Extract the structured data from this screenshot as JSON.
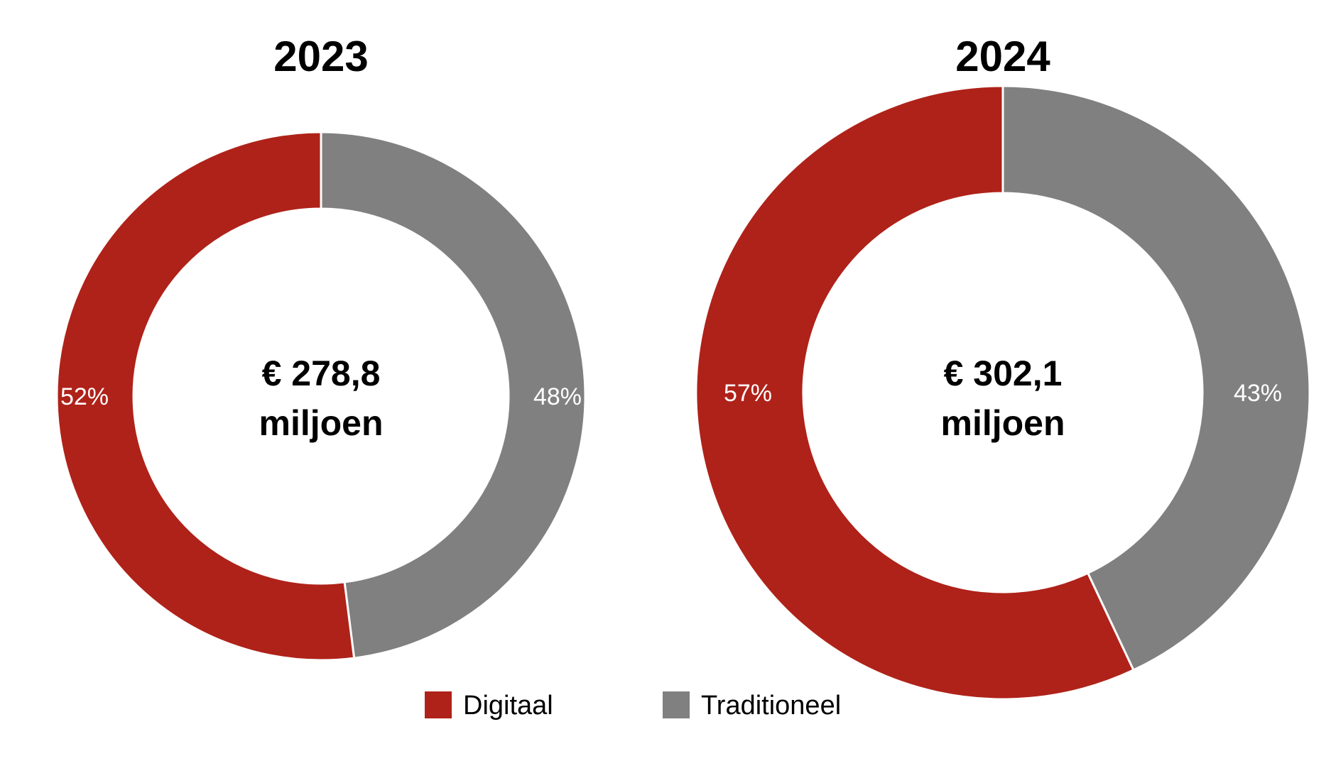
{
  "chart_data": [
    {
      "type": "donut",
      "title": "2023",
      "center_label": [
        "€ 278,8",
        "miljoen"
      ],
      "categories": [
        "Digitaal",
        "Traditioneel"
      ],
      "values": [
        52,
        48
      ],
      "value_labels": [
        "52%",
        "48%"
      ],
      "colors": [
        "#af2219",
        "#808080"
      ]
    },
    {
      "type": "donut",
      "title": "2024",
      "center_label": [
        "€ 302,1",
        "miljoen"
      ],
      "categories": [
        "Digitaal",
        "Traditioneel"
      ],
      "values": [
        57,
        43
      ],
      "value_labels": [
        "57%",
        "43%"
      ],
      "colors": [
        "#af2219",
        "#808080"
      ]
    }
  ],
  "legend": {
    "position": "bottom",
    "items": [
      {
        "label": "Digitaal",
        "color": "#af2219"
      },
      {
        "label": "Traditioneel",
        "color": "#808080"
      }
    ]
  }
}
